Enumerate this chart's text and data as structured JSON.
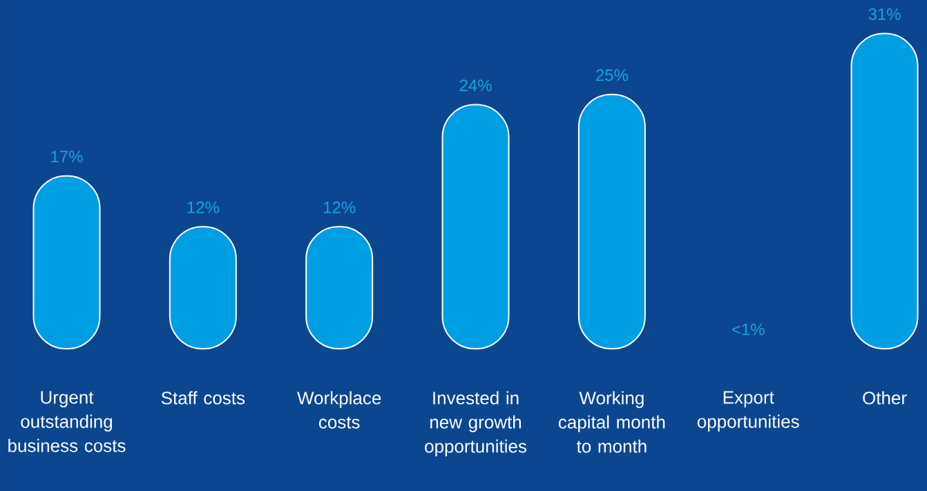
{
  "chart_data": {
    "type": "bar",
    "categories": [
      "Urgent outstanding business costs",
      "Staff costs",
      "Workplace costs",
      "Invested in new growth opportunities",
      "Working capital month to month",
      "Export opportunities",
      "Other"
    ],
    "values": [
      17,
      12,
      12,
      24,
      25,
      0,
      31
    ],
    "value_labels": [
      "17%",
      "12%",
      "12%",
      "24%",
      "25%",
      "<1%",
      "31%"
    ],
    "color": "#009fe3"
  }
}
